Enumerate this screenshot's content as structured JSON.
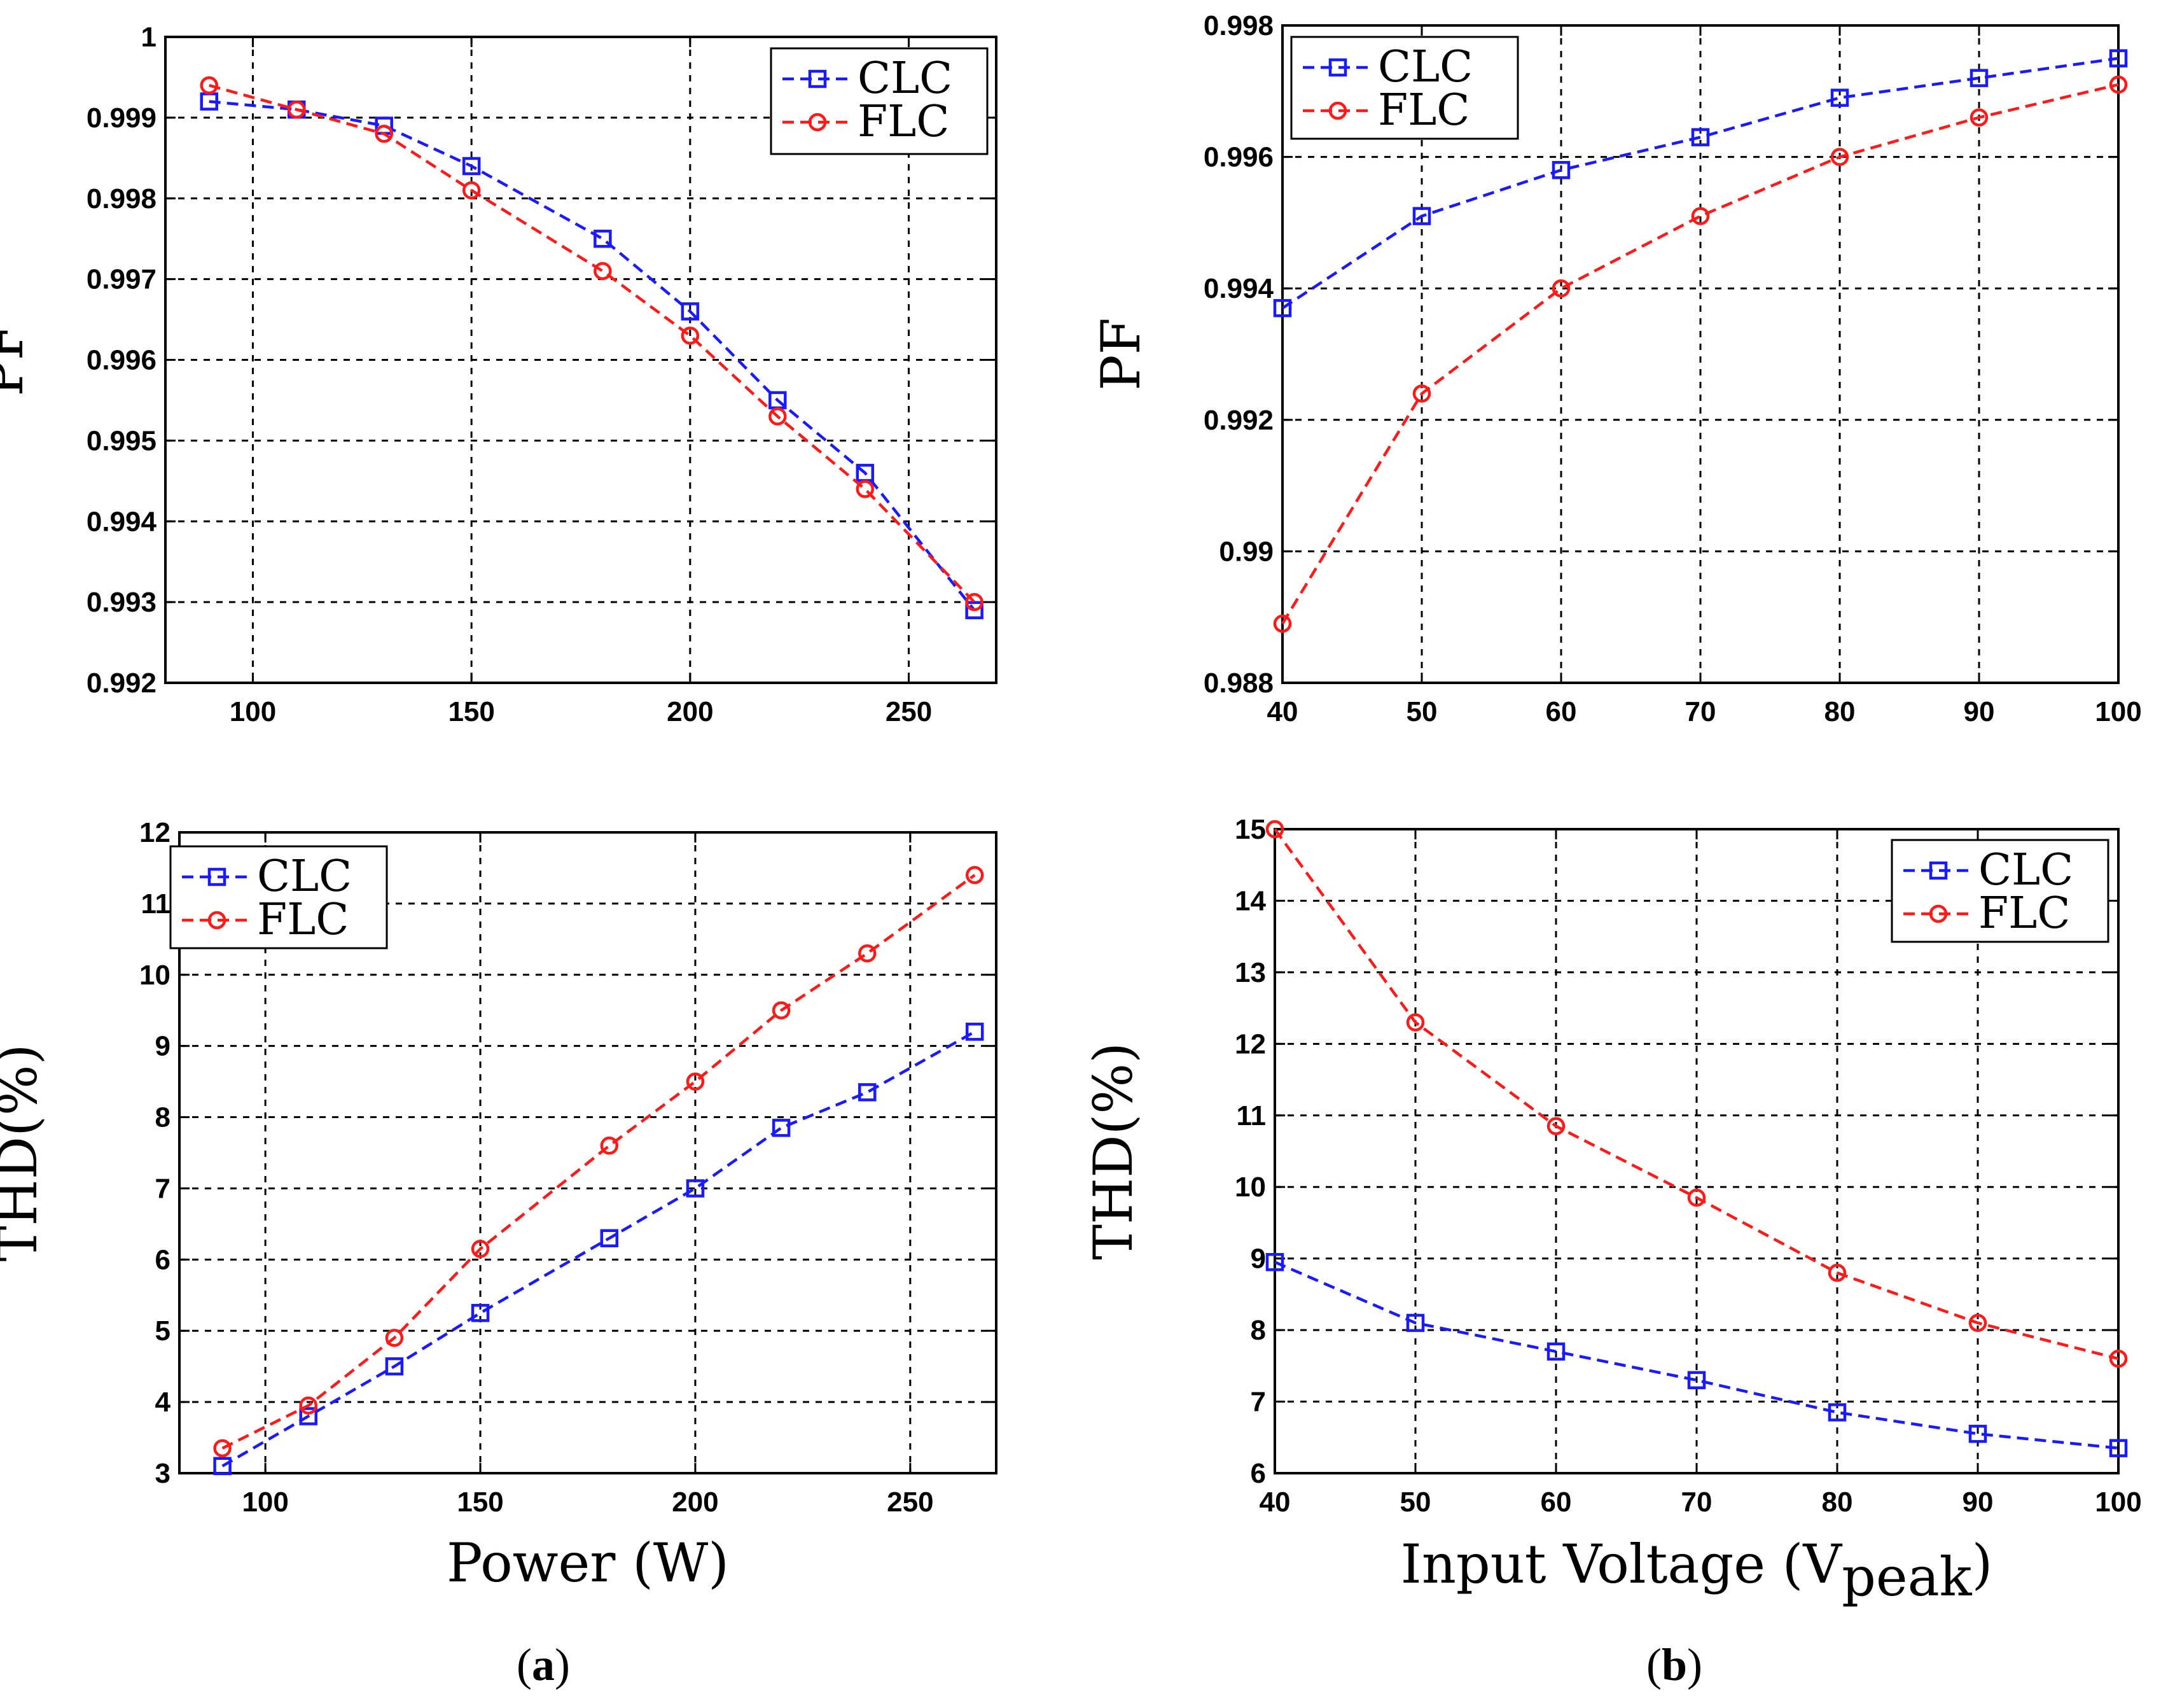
{
  "colors": {
    "CLC": "#1a1aff",
    "FLC": "#ff1a1a",
    "grid": "#000000",
    "axis": "#000000"
  },
  "panel_labels": {
    "a": "a",
    "b": "b"
  },
  "chart_data": [
    {
      "id": "a-pf",
      "type": "line",
      "xlabel": "",
      "ylabel": "PF",
      "xlim": [
        80,
        270
      ],
      "ylim": [
        0.992,
        1.0
      ],
      "xticks": [
        100,
        150,
        200,
        250
      ],
      "yticks": [
        0.992,
        0.993,
        0.994,
        0.995,
        0.996,
        0.997,
        0.998,
        0.999,
        1.0
      ],
      "ytick_labels": [
        "0.992",
        "0.993",
        "0.994",
        "0.995",
        "0.996",
        "0.997",
        "0.998",
        "0.999",
        "1"
      ],
      "xtick_labels": [
        "100",
        "150",
        "200",
        "250"
      ],
      "legend_position": "top-right",
      "grid": true,
      "series": [
        {
          "name": "CLC",
          "marker": "square",
          "x": [
            90,
            110,
            130,
            150,
            180,
            200,
            220,
            240,
            265
          ],
          "y": [
            0.9992,
            0.9991,
            0.9989,
            0.9984,
            0.9975,
            0.9966,
            0.9955,
            0.9946,
            0.9929
          ]
        },
        {
          "name": "FLC",
          "marker": "circle",
          "x": [
            90,
            110,
            130,
            150,
            180,
            200,
            220,
            240,
            265
          ],
          "y": [
            0.9994,
            0.9991,
            0.9988,
            0.9981,
            0.9971,
            0.9963,
            0.9953,
            0.9944,
            0.993
          ]
        }
      ]
    },
    {
      "id": "b-pf",
      "type": "line",
      "xlabel": "",
      "ylabel": "PF",
      "xlim": [
        40,
        100
      ],
      "ylim": [
        0.988,
        0.998
      ],
      "xticks": [
        40,
        50,
        60,
        70,
        80,
        90,
        100
      ],
      "yticks": [
        0.988,
        0.99,
        0.992,
        0.994,
        0.996,
        0.998
      ],
      "ytick_labels": [
        "0.988",
        "0.99",
        "0.992",
        "0.994",
        "0.996",
        "0.998"
      ],
      "xtick_labels": [
        "40",
        "50",
        "60",
        "70",
        "80",
        "90",
        "100"
      ],
      "legend_position": "top-left",
      "grid": true,
      "series": [
        {
          "name": "CLC",
          "marker": "square",
          "x": [
            40,
            50,
            60,
            70,
            80,
            90,
            100
          ],
          "y": [
            0.9937,
            0.9951,
            0.9958,
            0.9963,
            0.9969,
            0.9972,
            0.9975
          ]
        },
        {
          "name": "FLC",
          "marker": "circle",
          "x": [
            40,
            50,
            60,
            70,
            80,
            90,
            100
          ],
          "y": [
            0.9889,
            0.9924,
            0.994,
            0.9951,
            0.996,
            0.9966,
            0.9971
          ]
        }
      ]
    },
    {
      "id": "a-thd",
      "type": "line",
      "xlabel": "Power (W)",
      "ylabel": "THD(%)",
      "xlim": [
        80,
        270
      ],
      "ylim": [
        3,
        12
      ],
      "xticks": [
        100,
        150,
        200,
        250
      ],
      "yticks": [
        3,
        4,
        5,
        6,
        7,
        8,
        9,
        10,
        11,
        12
      ],
      "ytick_labels": [
        "3",
        "4",
        "5",
        "6",
        "7",
        "8",
        "9",
        "10",
        "11",
        "12"
      ],
      "xtick_labels": [
        "100",
        "150",
        "200",
        "250"
      ],
      "legend_position": "top-left",
      "grid": true,
      "series": [
        {
          "name": "CLC",
          "marker": "square",
          "x": [
            90,
            110,
            130,
            150,
            180,
            200,
            220,
            240,
            265
          ],
          "y": [
            3.1,
            3.8,
            4.5,
            5.25,
            6.3,
            7.0,
            7.85,
            8.35,
            9.2
          ]
        },
        {
          "name": "FLC",
          "marker": "circle",
          "x": [
            90,
            110,
            130,
            150,
            180,
            200,
            220,
            240,
            265
          ],
          "y": [
            3.35,
            3.95,
            4.9,
            6.15,
            7.6,
            8.5,
            9.5,
            10.3,
            11.4
          ]
        }
      ]
    },
    {
      "id": "b-thd",
      "type": "line",
      "xlabel_main": "Input Voltage (V",
      "xlabel_sub": "peak",
      "xlabel_end": ")",
      "ylabel": "THD(%)",
      "xlim": [
        40,
        100
      ],
      "ylim": [
        6,
        15
      ],
      "xticks": [
        40,
        50,
        60,
        70,
        80,
        90,
        100
      ],
      "yticks": [
        6,
        7,
        8,
        9,
        10,
        11,
        12,
        13,
        14,
        15
      ],
      "ytick_labels": [
        "6",
        "7",
        "8",
        "9",
        "10",
        "11",
        "12",
        "13",
        "14",
        "15"
      ],
      "xtick_labels": [
        "40",
        "50",
        "60",
        "70",
        "80",
        "90",
        "100"
      ],
      "legend_position": "top-right",
      "grid": true,
      "series": [
        {
          "name": "CLC",
          "marker": "square",
          "x": [
            40,
            50,
            60,
            70,
            80,
            90,
            100
          ],
          "y": [
            8.95,
            8.1,
            7.7,
            7.3,
            6.85,
            6.55,
            6.35
          ]
        },
        {
          "name": "FLC",
          "marker": "circle",
          "x": [
            40,
            50,
            60,
            70,
            80,
            90,
            100
          ],
          "y": [
            15.0,
            12.3,
            10.85,
            9.85,
            8.8,
            8.1,
            7.6
          ]
        }
      ]
    }
  ]
}
